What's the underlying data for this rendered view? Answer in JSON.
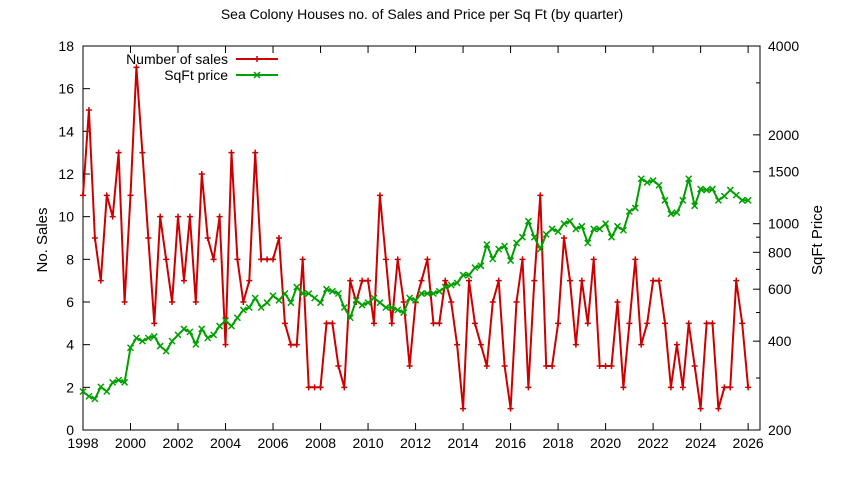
{
  "chart_data": {
    "type": "line",
    "title": "Sea Colony Houses no. of Sales and Price per Sq Ft (by quarter)",
    "xlabel": "",
    "ylabel": "No. Sales",
    "y2label": "SqFt Price",
    "xlim": [
      1998,
      2026.5
    ],
    "ylim": [
      0,
      18
    ],
    "y2lim": [
      200,
      4000
    ],
    "y2_scale": "log",
    "x_ticks": [
      "1998",
      "2000",
      "2002",
      "2004",
      "2006",
      "2008",
      "2010",
      "2012",
      "2014",
      "2016",
      "2018",
      "2020",
      "2022",
      "2024",
      "2026"
    ],
    "y_ticks": [
      "0",
      "2",
      "4",
      "6",
      "8",
      "10",
      "12",
      "14",
      "16",
      "18"
    ],
    "y2_ticks": [
      "200",
      "400",
      "600",
      "800",
      "1000",
      "1500",
      "2000",
      "4000"
    ],
    "legend_position": "top-left",
    "grid": false,
    "series": [
      {
        "name": "Number of sales",
        "color": "#cc0000",
        "axis": "left",
        "x": [
          1998.0,
          1998.25,
          1998.5,
          1998.75,
          1999.0,
          1999.25,
          1999.5,
          1999.75,
          2000.0,
          2000.25,
          2000.5,
          2000.75,
          2001.0,
          2001.25,
          2001.5,
          2001.75,
          2002.0,
          2002.25,
          2002.5,
          2002.75,
          2003.0,
          2003.25,
          2003.5,
          2003.75,
          2004.0,
          2004.25,
          2004.5,
          2004.75,
          2005.0,
          2005.25,
          2005.5,
          2005.75,
          2006.0,
          2006.25,
          2006.5,
          2006.75,
          2007.0,
          2007.25,
          2007.5,
          2007.75,
          2008.0,
          2008.25,
          2008.5,
          2008.75,
          2009.0,
          2009.25,
          2009.5,
          2009.75,
          2010.0,
          2010.25,
          2010.5,
          2010.75,
          2011.0,
          2011.25,
          2011.5,
          2011.75,
          2012.0,
          2012.25,
          2012.5,
          2012.75,
          2013.0,
          2013.25,
          2013.5,
          2013.75,
          2014.0,
          2014.25,
          2014.5,
          2014.75,
          2015.0,
          2015.25,
          2015.5,
          2015.75,
          2016.0,
          2016.25,
          2016.5,
          2016.75,
          2017.0,
          2017.25,
          2017.5,
          2017.75,
          2018.0,
          2018.25,
          2018.5,
          2018.75,
          2019.0,
          2019.25,
          2019.5,
          2019.75,
          2020.0,
          2020.25,
          2020.5,
          2020.75,
          2021.0,
          2021.25,
          2021.5,
          2021.75,
          2022.0,
          2022.25,
          2022.5,
          2022.75,
          2023.0,
          2023.25,
          2023.5,
          2023.75,
          2024.0,
          2024.25,
          2024.5,
          2024.75,
          2025.0,
          2025.25,
          2025.5,
          2025.75,
          2026.0
        ],
        "values": [
          11,
          15,
          9,
          7,
          11,
          10,
          13,
          6,
          11,
          17,
          13,
          9,
          5,
          10,
          8,
          6,
          10,
          7,
          10,
          6,
          12,
          9,
          8,
          10,
          4,
          13,
          8,
          6,
          7,
          13,
          8,
          8,
          8,
          9,
          5,
          4,
          4,
          8,
          2,
          2,
          2,
          5,
          5,
          3,
          2,
          7,
          6,
          7,
          7,
          5,
          11,
          8,
          5,
          8,
          6,
          3,
          6,
          7,
          8,
          5,
          5,
          7,
          6,
          4,
          1,
          7,
          5,
          4,
          3,
          6,
          7,
          3,
          1,
          6,
          8,
          2,
          7,
          11,
          3,
          3,
          5,
          9,
          7,
          4,
          7,
          5,
          8,
          3,
          3,
          3,
          6,
          2,
          5,
          8,
          4,
          5,
          7,
          7,
          5,
          2,
          4,
          2,
          5,
          3,
          1,
          5,
          5,
          1,
          2,
          2,
          7,
          5,
          2
        ]
      },
      {
        "name": "SqFt price",
        "color": "#00a000",
        "axis": "right",
        "x": [
          1998.0,
          1998.25,
          1998.5,
          1998.75,
          1999.0,
          1999.25,
          1999.5,
          1999.75,
          2000.0,
          2000.25,
          2000.5,
          2000.75,
          2001.0,
          2001.25,
          2001.5,
          2001.75,
          2002.0,
          2002.25,
          2002.5,
          2002.75,
          2003.0,
          2003.25,
          2003.5,
          2003.75,
          2004.0,
          2004.25,
          2004.5,
          2004.75,
          2005.0,
          2005.25,
          2005.5,
          2005.75,
          2006.0,
          2006.25,
          2006.5,
          2006.75,
          2007.0,
          2007.25,
          2007.5,
          2007.75,
          2008.0,
          2008.25,
          2008.5,
          2008.75,
          2009.0,
          2009.25,
          2009.5,
          2009.75,
          2010.0,
          2010.25,
          2010.5,
          2010.75,
          2011.0,
          2011.25,
          2011.5,
          2011.75,
          2012.0,
          2012.25,
          2012.5,
          2012.75,
          2013.0,
          2013.25,
          2013.5,
          2013.75,
          2014.0,
          2014.25,
          2014.5,
          2014.75,
          2015.0,
          2015.25,
          2015.5,
          2015.75,
          2016.0,
          2016.25,
          2016.5,
          2016.75,
          2017.0,
          2017.25,
          2017.5,
          2017.75,
          2018.0,
          2018.25,
          2018.5,
          2018.75,
          2019.0,
          2019.25,
          2019.5,
          2019.75,
          2020.0,
          2020.25,
          2020.5,
          2020.75,
          2021.0,
          2021.25,
          2021.5,
          2021.75,
          2022.0,
          2022.25,
          2022.5,
          2022.75,
          2023.0,
          2023.25,
          2023.5,
          2023.75,
          2024.0,
          2024.25,
          2024.5,
          2024.75,
          2025.0,
          2025.25,
          2025.5,
          2025.75,
          2026.0
        ],
        "values": [
          270,
          260,
          255,
          280,
          270,
          290,
          295,
          290,
          380,
          410,
          400,
          410,
          415,
          385,
          370,
          400,
          420,
          440,
          430,
          390,
          440,
          410,
          420,
          450,
          470,
          450,
          480,
          510,
          520,
          560,
          520,
          540,
          570,
          550,
          580,
          540,
          610,
          580,
          580,
          560,
          540,
          600,
          590,
          580,
          520,
          480,
          550,
          530,
          540,
          560,
          540,
          520,
          520,
          510,
          500,
          560,
          550,
          580,
          580,
          580,
          590,
          610,
          620,
          630,
          670,
          670,
          710,
          720,
          850,
          760,
          820,
          840,
          750,
          860,
          900,
          1020,
          900,
          820,
          920,
          960,
          940,
          1000,
          1020,
          960,
          980,
          860,
          960,
          960,
          1000,
          900,
          980,
          950,
          1100,
          1130,
          1420,
          1380,
          1400,
          1350,
          1200,
          1080,
          1090,
          1200,
          1420,
          1150,
          1310,
          1300,
          1310,
          1200,
          1240,
          1300,
          1250,
          1200,
          1200
        ]
      }
    ]
  }
}
